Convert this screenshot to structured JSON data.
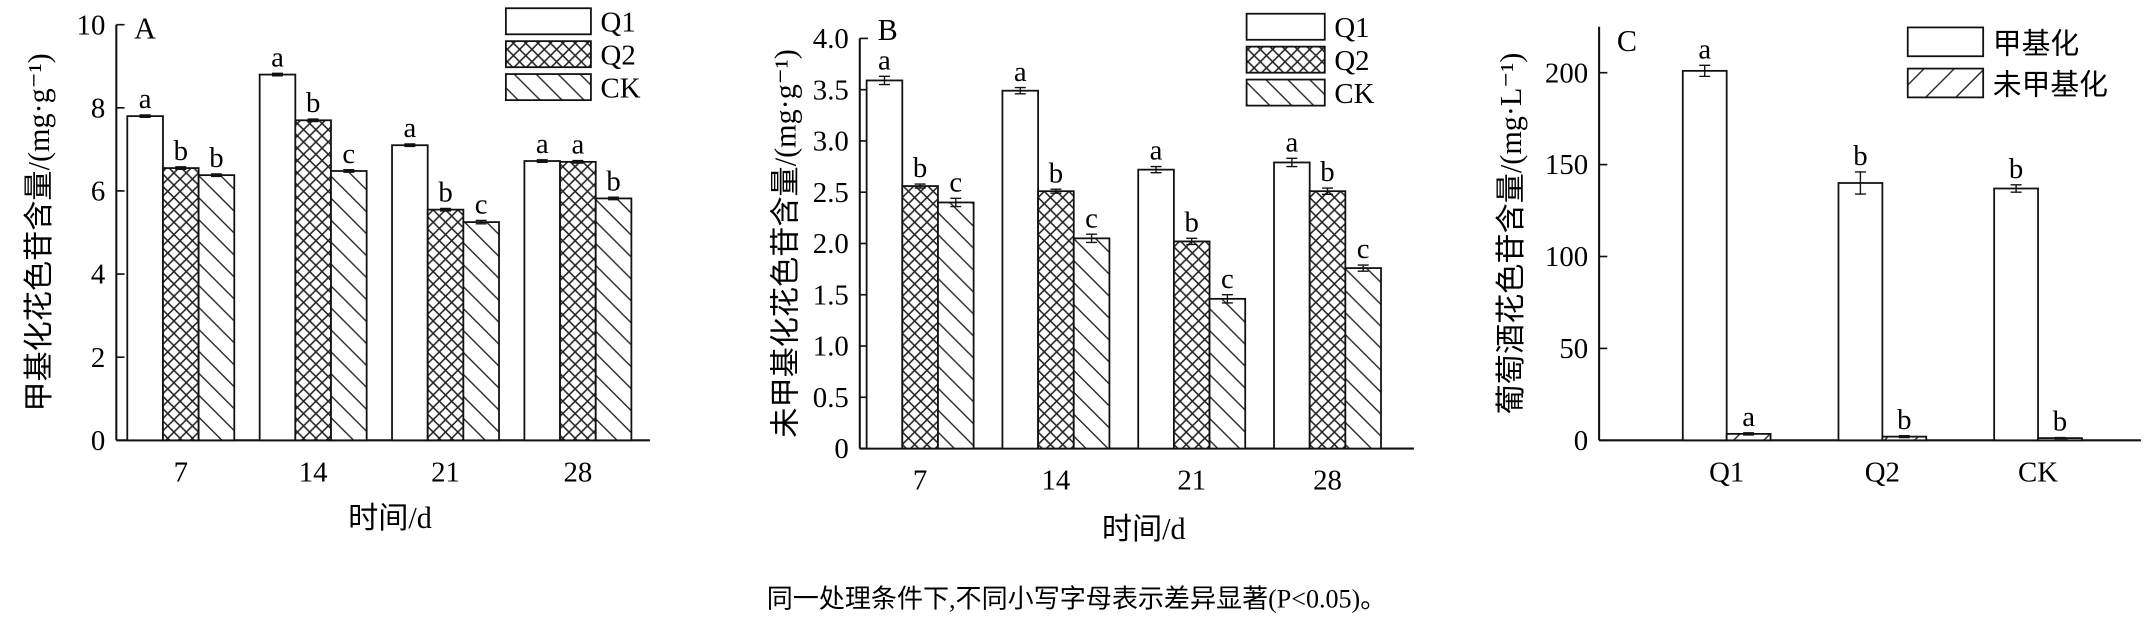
{
  "caption": "同一处理条件下,不同小写字母表示差异显著(P<0.05)。",
  "chart_data": [
    {
      "type": "bar",
      "panel": "A",
      "xlabel": "时间/d",
      "ylabel": "甲基化花色苷含量/(mg·g⁻¹)",
      "categories": [
        "7",
        "14",
        "21",
        "28"
      ],
      "ylim": [
        0,
        10
      ],
      "yticks": [
        "0",
        "2",
        "4",
        "6",
        "8",
        "10"
      ],
      "ytick_values": [
        0,
        2,
        4,
        6,
        8,
        10
      ],
      "legend_position": "top-right",
      "series": [
        {
          "name": "Q1",
          "pattern": "none",
          "values": [
            7.8,
            8.8,
            7.1,
            6.72
          ],
          "errors": [
            0.03,
            0.03,
            0.03,
            0.03
          ],
          "letters": [
            "a",
            "a",
            "a",
            "a"
          ]
        },
        {
          "name": "Q2",
          "pattern": "crosshatch",
          "values": [
            6.55,
            7.7,
            5.55,
            6.7
          ],
          "errors": [
            0.03,
            0.03,
            0.03,
            0.03
          ],
          "letters": [
            "b",
            "b",
            "b",
            "a"
          ]
        },
        {
          "name": "CK",
          "pattern": "backslash",
          "values": [
            6.38,
            6.48,
            5.25,
            5.82
          ],
          "errors": [
            0.03,
            0.03,
            0.04,
            0.03
          ],
          "letters": [
            "b",
            "c",
            "c",
            "b"
          ]
        }
      ]
    },
    {
      "type": "bar",
      "panel": "B",
      "xlabel": "时间/d",
      "ylabel": "未甲基化花色苷含量/(mg·g⁻¹)",
      "categories": [
        "7",
        "14",
        "21",
        "28"
      ],
      "ylim": [
        0,
        4
      ],
      "yticks": [
        "0",
        "0.5",
        "1.0",
        "1.5",
        "2.0",
        "2.5",
        "3.0",
        "3.5",
        "4.0"
      ],
      "ytick_values": [
        0,
        0.5,
        1,
        1.5,
        2,
        2.5,
        3,
        3.5,
        4
      ],
      "legend_position": "top-right",
      "series": [
        {
          "name": "Q1",
          "pattern": "none",
          "values": [
            3.59,
            3.49,
            2.72,
            2.79
          ],
          "errors": [
            0.04,
            0.03,
            0.03,
            0.04
          ],
          "letters": [
            "a",
            "a",
            "a",
            "a"
          ]
        },
        {
          "name": "Q2",
          "pattern": "crosshatch",
          "values": [
            2.56,
            2.51,
            2.02,
            2.51
          ],
          "errors": [
            0.02,
            0.02,
            0.03,
            0.03
          ],
          "letters": [
            "b",
            "b",
            "b",
            "b"
          ]
        },
        {
          "name": "CK",
          "pattern": "backslash",
          "values": [
            2.4,
            2.05,
            1.46,
            1.76
          ],
          "errors": [
            0.04,
            0.04,
            0.04,
            0.03
          ],
          "letters": [
            "c",
            "c",
            "c",
            "c"
          ]
        }
      ]
    },
    {
      "type": "bar",
      "panel": "C",
      "xlabel": "",
      "ylabel": "葡萄酒花色苷含量/(mg·L⁻¹)",
      "categories": [
        "Q1",
        "Q2",
        "CK"
      ],
      "ylim": [
        0,
        225
      ],
      "yticks": [
        "0",
        "50",
        "100",
        "150",
        "200"
      ],
      "ytick_values": [
        0,
        50,
        100,
        150,
        200
      ],
      "legend_position": "top-right",
      "series": [
        {
          "name": "甲基化",
          "pattern": "none",
          "values": [
            201,
            140,
            137
          ],
          "errors": [
            3,
            6,
            2
          ],
          "letters": [
            "a",
            "b",
            "b"
          ]
        },
        {
          "name": "未甲基化",
          "pattern": "slash",
          "values": [
            3.5,
            2.0,
            1.2
          ],
          "errors": [
            0.6,
            0.5,
            0.3
          ],
          "letters": [
            "a",
            "b",
            "b"
          ]
        }
      ]
    }
  ]
}
